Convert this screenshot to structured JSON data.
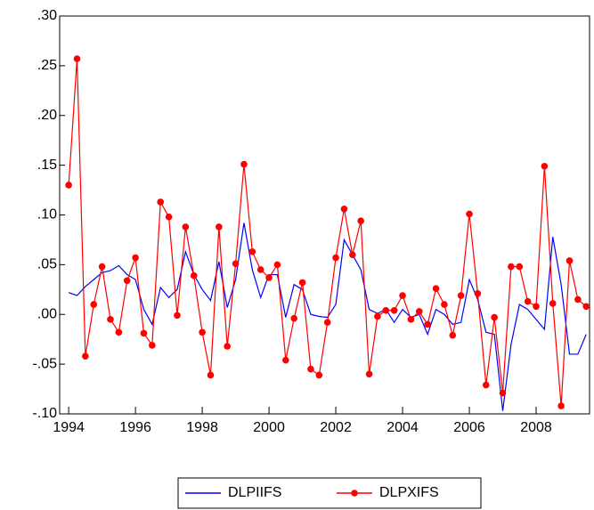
{
  "chart_data": {
    "type": "line",
    "x": [
      1994,
      1994.25,
      1994.5,
      1994.75,
      1995,
      1995.25,
      1995.5,
      1995.75,
      1996,
      1996.25,
      1996.5,
      1996.75,
      1997,
      1997.25,
      1997.5,
      1997.75,
      1998,
      1998.25,
      1998.5,
      1998.75,
      1999,
      1999.25,
      1999.5,
      1999.75,
      2000,
      2000.25,
      2000.5,
      2000.75,
      2001,
      2001.25,
      2001.5,
      2001.75,
      2002,
      2002.25,
      2002.5,
      2002.75,
      2003,
      2003.25,
      2003.5,
      2003.75,
      2004,
      2004.25,
      2004.5,
      2004.75,
      2005,
      2005.25,
      2005.5,
      2005.75,
      2006,
      2006.25,
      2006.5,
      2006.75,
      2007,
      2007.25,
      2007.5,
      2007.75,
      2008,
      2008.25,
      2008.5,
      2008.75,
      2009,
      2009.25,
      2009.5
    ],
    "series": [
      {
        "name": "DLPIIFS",
        "color": "#0000ff",
        "marker": "none",
        "values": [
          0.022,
          0.019,
          0.028,
          0.035,
          0.042,
          0.044,
          0.049,
          0.04,
          0.035,
          0.005,
          -0.01,
          0.027,
          0.017,
          0.025,
          0.063,
          0.04,
          0.025,
          0.014,
          0.053,
          0.007,
          0.035,
          0.092,
          0.045,
          0.017,
          0.04,
          0.04,
          -0.003,
          0.03,
          0.025,
          0.0,
          -0.002,
          -0.003,
          0.01,
          0.075,
          0.06,
          0.045,
          0.005,
          0.001,
          0.005,
          -0.008,
          0.005,
          -0.003,
          0.0,
          -0.02,
          0.005,
          0.0,
          -0.01,
          -0.008,
          0.035,
          0.015,
          -0.018,
          -0.02,
          -0.097,
          -0.03,
          0.01,
          0.005,
          -0.005,
          -0.015,
          0.078,
          0.03,
          -0.04,
          -0.04,
          -0.02
        ]
      },
      {
        "name": "DLPXIFS",
        "color": "#ff0000",
        "marker": "circle",
        "values": [
          0.13,
          0.257,
          -0.042,
          0.01,
          0.048,
          -0.005,
          -0.018,
          0.034,
          0.057,
          -0.019,
          -0.031,
          0.113,
          0.098,
          -0.001,
          0.088,
          0.039,
          -0.018,
          -0.061,
          0.088,
          -0.032,
          0.051,
          0.151,
          0.063,
          0.045,
          0.037,
          0.05,
          -0.046,
          -0.004,
          0.032,
          -0.055,
          -0.061,
          -0.008,
          0.057,
          0.106,
          0.06,
          0.094,
          -0.06,
          -0.002,
          0.004,
          0.004,
          0.019,
          -0.005,
          0.003,
          -0.01,
          0.026,
          0.01,
          -0.021,
          0.019,
          0.101,
          0.021,
          -0.071,
          -0.003,
          -0.079,
          0.048,
          0.048,
          0.013,
          0.008,
          0.149,
          0.011,
          -0.092,
          0.054,
          0.015,
          0.008
        ]
      }
    ],
    "xlim": [
      1993.73,
      2009.6
    ],
    "xticks": [
      1994,
      1996,
      1998,
      2000,
      2002,
      2004,
      2006,
      2008
    ],
    "ylim": [
      -0.1,
      0.3
    ],
    "yticks": [
      {
        "value": -0.1,
        "label": "-.10"
      },
      {
        "value": -0.05,
        "label": "-.05"
      },
      {
        "value": 0,
        "label": ".00"
      },
      {
        "value": 0.05,
        "label": ".05"
      },
      {
        "value": 0.1,
        "label": ".10"
      },
      {
        "value": 0.15,
        "label": ".15"
      },
      {
        "value": 0.2,
        "label": ".20"
      },
      {
        "value": 0.25,
        "label": ".25"
      },
      {
        "value": 0.3,
        "label": ".30"
      }
    ],
    "legend": "bottom"
  }
}
